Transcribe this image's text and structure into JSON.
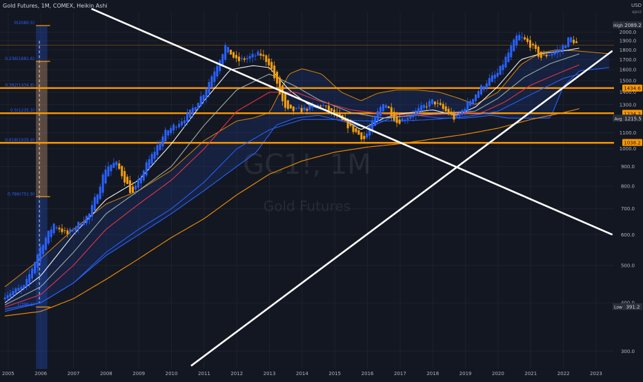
{
  "header": {
    "symbol_line": "Gold Futures, 1M, COMEX, Heikin Ashi",
    "currency": "USD",
    "axis_note_1": "apoz"
  },
  "watermark": {
    "ticker": "GC1!, 1M",
    "name": "Gold Futures"
  },
  "colors": {
    "background": "#131722",
    "grid": "#1e2230",
    "up_candle": "#2962ff",
    "down_candle": "#f59e0b",
    "fib_line": "#ff9800",
    "white_ma": "#ffffff",
    "grey_ma": "#a5b5a8",
    "red_ma": "#f23645",
    "blue_ma": "#2962ff",
    "orange_ma": "#ff9800",
    "trendline": "#ffffff",
    "fib_label": "#2962ff"
  },
  "chart_data": {
    "type": "candlestick",
    "title": "Gold Futures, 1M, COMEX, Heikin Ashi",
    "y_scale": "log",
    "ylim": [
      270,
      2250
    ],
    "xlim": [
      2004.75,
      2023.55
    ],
    "y_ticks": [
      300,
      400,
      500,
      600,
      700,
      800,
      900,
      1000,
      1100,
      1200,
      1300,
      1400,
      1500,
      1600,
      1700,
      1800,
      1900,
      2000
    ],
    "x_ticks": [
      "2005",
      "2006",
      "2007",
      "2008",
      "2009",
      "2010",
      "2011",
      "2012",
      "2013",
      "2014",
      "2015",
      "2016",
      "2017",
      "2018",
      "2019",
      "2020",
      "2021",
      "2022",
      "2023"
    ],
    "price_path": [
      [
        2004.9,
        420
      ],
      [
        2005.5,
        440
      ],
      [
        2006.0,
        560
      ],
      [
        2006.4,
        640
      ],
      [
        2006.8,
        600
      ],
      [
        2007.5,
        680
      ],
      [
        2008.0,
        900
      ],
      [
        2008.3,
        920
      ],
      [
        2008.8,
        760
      ],
      [
        2009.2,
        900
      ],
      [
        2009.8,
        1100
      ],
      [
        2010.5,
        1220
      ],
      [
        2011.0,
        1400
      ],
      [
        2011.65,
        1840
      ],
      [
        2012.0,
        1680
      ],
      [
        2012.7,
        1760
      ],
      [
        2013.0,
        1660
      ],
      [
        2013.5,
        1250
      ],
      [
        2014.0,
        1260
      ],
      [
        2014.6,
        1300
      ],
      [
        2015.0,
        1220
      ],
      [
        2015.9,
        1060
      ],
      [
        2016.5,
        1330
      ],
      [
        2016.9,
        1170
      ],
      [
        2017.5,
        1250
      ],
      [
        2018.0,
        1330
      ],
      [
        2018.7,
        1190
      ],
      [
        2019.0,
        1290
      ],
      [
        2019.6,
        1480
      ],
      [
        2020.0,
        1570
      ],
      [
        2020.6,
        1970
      ],
      [
        2021.0,
        1850
      ],
      [
        2021.3,
        1720
      ],
      [
        2021.9,
        1800
      ],
      [
        2022.2,
        1940
      ],
      [
        2022.45,
        1850
      ]
    ],
    "fib_levels": [
      {
        "ratio": "0",
        "price": 2080.5,
        "label": "0(2080.5)"
      },
      {
        "ratio": "0.236",
        "price": 1681.6,
        "label": "0.236(1681.6)"
      },
      {
        "ratio": "0.382",
        "price": 1434.8,
        "label": "0.382(1434.8)",
        "line": true
      },
      {
        "ratio": "0.5",
        "price": 1235.3,
        "label": "0.5(1235.3)",
        "line": true
      },
      {
        "ratio": "0.618",
        "price": 1035.9,
        "label": "0.618(1035.9)",
        "line": true
      },
      {
        "ratio": "0.786",
        "price": 751.9,
        "label": "0.786(751.9)"
      },
      {
        "ratio": "1",
        "price": 390.1,
        "label": "1(390.1)"
      }
    ],
    "axis_labels": [
      {
        "text": "High",
        "value": "2089.2",
        "price": 2089.2,
        "style": "dark"
      },
      {
        "text": "",
        "value": "1434.6",
        "price": 1434.6,
        "style": "orange"
      },
      {
        "text": "",
        "value": "1234.2",
        "price": 1234.2,
        "style": "orange"
      },
      {
        "text": "Avg",
        "value": "1215.5",
        "price": 1200.0,
        "style": "dark"
      },
      {
        "text": "",
        "value": "1038.2",
        "price": 1038.2,
        "style": "orange"
      },
      {
        "text": "Low",
        "value": "391.2",
        "price": 391.2,
        "style": "dark"
      }
    ],
    "trendlines": [
      {
        "name": "descending",
        "from": [
          2007.55,
          2300
        ],
        "to": [
          2023.5,
          600
        ]
      },
      {
        "name": "ascending",
        "from": [
          2010.6,
          275
        ],
        "to": [
          2023.5,
          1790
        ]
      }
    ],
    "moving_averages": [
      {
        "color_key": "white_ma",
        "points": [
          [
            2004.9,
            400
          ],
          [
            2006,
            470
          ],
          [
            2007,
            600
          ],
          [
            2008,
            740
          ],
          [
            2009,
            830
          ],
          [
            2010,
            1030
          ],
          [
            2011,
            1330
          ],
          [
            2011.8,
            1600
          ],
          [
            2012.5,
            1640
          ],
          [
            2013.0,
            1620
          ],
          [
            2013.6,
            1420
          ],
          [
            2014.2,
            1300
          ],
          [
            2015,
            1230
          ],
          [
            2015.8,
            1120
          ],
          [
            2016.5,
            1200
          ],
          [
            2017,
            1230
          ],
          [
            2018,
            1260
          ],
          [
            2018.7,
            1220
          ],
          [
            2019.3,
            1280
          ],
          [
            2020,
            1450
          ],
          [
            2020.7,
            1700
          ],
          [
            2021.3,
            1760
          ],
          [
            2022,
            1790
          ],
          [
            2022.5,
            1820
          ]
        ]
      },
      {
        "color_key": "grey_ma",
        "points": [
          [
            2004.9,
            395
          ],
          [
            2006,
            440
          ],
          [
            2007,
            540
          ],
          [
            2008,
            680
          ],
          [
            2009,
            780
          ],
          [
            2010,
            900
          ],
          [
            2011,
            1150
          ],
          [
            2012,
            1420
          ],
          [
            2013,
            1560
          ],
          [
            2013.8,
            1450
          ],
          [
            2014.5,
            1340
          ],
          [
            2015.5,
            1240
          ],
          [
            2016.5,
            1200
          ],
          [
            2017.5,
            1220
          ],
          [
            2018.5,
            1240
          ],
          [
            2019.3,
            1250
          ],
          [
            2020,
            1350
          ],
          [
            2020.8,
            1530
          ],
          [
            2021.6,
            1660
          ],
          [
            2022.5,
            1760
          ]
        ]
      },
      {
        "color_key": "red_ma",
        "points": [
          [
            2004.9,
            390
          ],
          [
            2006,
            420
          ],
          [
            2007,
            500
          ],
          [
            2008,
            620
          ],
          [
            2009,
            720
          ],
          [
            2010,
            830
          ],
          [
            2011,
            1000
          ],
          [
            2012,
            1250
          ],
          [
            2013,
            1400
          ],
          [
            2013.8,
            1400
          ],
          [
            2014.5,
            1330
          ],
          [
            2015.5,
            1260
          ],
          [
            2016.5,
            1230
          ],
          [
            2017.5,
            1220
          ],
          [
            2018.5,
            1230
          ],
          [
            2019.5,
            1240
          ],
          [
            2020.2,
            1320
          ],
          [
            2021,
            1460
          ],
          [
            2021.8,
            1560
          ],
          [
            2022.5,
            1650
          ]
        ]
      },
      {
        "color_key": "blue_ma",
        "points": [
          [
            2004.9,
            385
          ],
          [
            2006,
            400
          ],
          [
            2007,
            450
          ],
          [
            2008,
            540
          ],
          [
            2009,
            620
          ],
          [
            2010,
            700
          ],
          [
            2011,
            820
          ],
          [
            2012,
            1000
          ],
          [
            2013,
            1120
          ],
          [
            2014,
            1190
          ],
          [
            2015,
            1190
          ],
          [
            2016,
            1180
          ],
          [
            2017,
            1180
          ],
          [
            2018,
            1190
          ],
          [
            2019,
            1210
          ],
          [
            2020,
            1250
          ],
          [
            2021,
            1380
          ],
          [
            2022,
            1520
          ],
          [
            2022.5,
            1560
          ]
        ]
      },
      {
        "color_key": "orange_ma",
        "points": [
          [
            2004.9,
            370
          ],
          [
            2006,
            380
          ],
          [
            2007,
            410
          ],
          [
            2008,
            460
          ],
          [
            2009,
            520
          ],
          [
            2010,
            590
          ],
          [
            2011,
            660
          ],
          [
            2012,
            760
          ],
          [
            2013,
            860
          ],
          [
            2014,
            930
          ],
          [
            2015,
            980
          ],
          [
            2016,
            1010
          ],
          [
            2017,
            1030
          ],
          [
            2018,
            1060
          ],
          [
            2019,
            1090
          ],
          [
            2020,
            1130
          ],
          [
            2021,
            1190
          ],
          [
            2022,
            1240
          ],
          [
            2022.5,
            1270
          ]
        ]
      }
    ],
    "cloud_upper": [
      [
        2004.9,
        440
      ],
      [
        2006,
        520
      ],
      [
        2007,
        620
      ],
      [
        2008,
        720
      ],
      [
        2009,
        780
      ],
      [
        2010,
        880
      ],
      [
        2011,
        1050
      ],
      [
        2012,
        1180
      ],
      [
        2012.5,
        1200
      ],
      [
        2013,
        1240
      ],
      [
        2013.6,
        1560
      ],
      [
        2014,
        1610
      ],
      [
        2014.6,
        1560
      ],
      [
        2015.2,
        1400
      ],
      [
        2015.8,
        1330
      ],
      [
        2016.3,
        1390
      ],
      [
        2016.9,
        1420
      ],
      [
        2017.5,
        1420
      ],
      [
        2018.2,
        1400
      ],
      [
        2018.8,
        1350
      ],
      [
        2019.3,
        1300
      ],
      [
        2020,
        1400
      ],
      [
        2020.7,
        1650
      ],
      [
        2021.3,
        1770
      ],
      [
        2021.8,
        1800
      ],
      [
        2022.4,
        1790
      ],
      [
        2023.4,
        1760
      ]
    ],
    "cloud_lower": [
      [
        2004.9,
        380
      ],
      [
        2006,
        400
      ],
      [
        2007,
        450
      ],
      [
        2008,
        530
      ],
      [
        2009,
        600
      ],
      [
        2010,
        680
      ],
      [
        2011,
        780
      ],
      [
        2012,
        900
      ],
      [
        2012.6,
        980
      ],
      [
        2013.2,
        1150
      ],
      [
        2013.8,
        1200
      ],
      [
        2014.5,
        1220
      ],
      [
        2015.2,
        1180
      ],
      [
        2016,
        1130
      ],
      [
        2016.8,
        1210
      ],
      [
        2017.5,
        1220
      ],
      [
        2018.2,
        1200
      ],
      [
        2019,
        1200
      ],
      [
        2019.8,
        1220
      ],
      [
        2020.3,
        1200
      ],
      [
        2021,
        1200
      ],
      [
        2021.6,
        1200
      ],
      [
        2022,
        1450
      ],
      [
        2022.5,
        1590
      ],
      [
        2023.4,
        1620
      ]
    ],
    "fib_box": {
      "x0": 2005.85,
      "x1": 2006.2,
      "top": 2080.5,
      "bottom": 260
    }
  }
}
